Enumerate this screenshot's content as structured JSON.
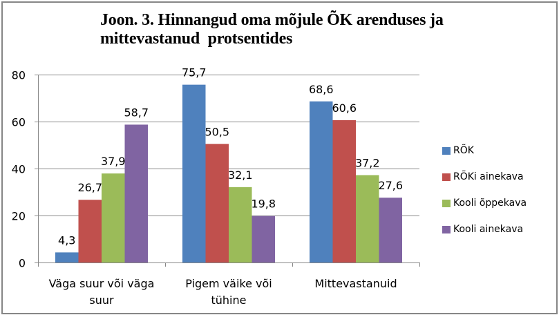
{
  "chart_data": {
    "type": "bar",
    "title_line1": "Joon. 3. Hinnangud oma mõjule ÕK arenduses ja",
    "title_line2": "mittevastanud  protsentides",
    "categories": [
      [
        "Väga suur või väga",
        "suur"
      ],
      [
        "Pigem väike või",
        "tühine"
      ],
      [
        "Mittevastanuid"
      ]
    ],
    "series": [
      {
        "name": "RÕK",
        "color": "#4f81bd",
        "values": [
          4.3,
          75.7,
          68.6
        ],
        "labels": [
          "4,3",
          "75,7",
          "68,6"
        ]
      },
      {
        "name": "RÕKi ainekava",
        "color": "#c0504d",
        "values": [
          26.7,
          50.5,
          60.6
        ],
        "labels": [
          "26,7",
          "50,5",
          "60,6"
        ]
      },
      {
        "name": "Kooli õppekava",
        "color": "#9bbb59",
        "values": [
          37.9,
          32.1,
          37.2
        ],
        "labels": [
          "37,9",
          "32,1",
          "37,2"
        ]
      },
      {
        "name": "Kooli ainekava",
        "color": "#8064a2",
        "values": [
          58.7,
          19.8,
          27.6
        ],
        "labels": [
          "58,7",
          "19,8",
          "27,6"
        ]
      }
    ],
    "ylim": [
      0,
      80
    ],
    "yticks": [
      "0",
      "20",
      "40",
      "60",
      "80"
    ],
    "ytick_values": [
      0,
      20,
      40,
      60,
      80
    ],
    "grid": true,
    "legend_position": "right",
    "xlabel": "",
    "ylabel": ""
  }
}
